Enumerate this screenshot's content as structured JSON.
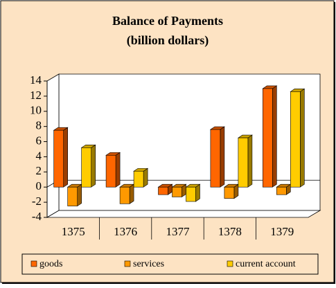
{
  "chart_data": {
    "type": "bar",
    "title": "Balance of Payments",
    "subtitle": "(billion dollars)",
    "categories": [
      "1375",
      "1376",
      "1377",
      "1378",
      "1379"
    ],
    "series": [
      {
        "name": "goods",
        "color": "#ff6600",
        "values": [
          7.5,
          4.2,
          -1.0,
          7.6,
          13.0
        ]
      },
      {
        "name": "services",
        "color": "#ff9900",
        "values": [
          -2.5,
          -2.2,
          -1.3,
          -1.5,
          -1.0
        ]
      },
      {
        "name": "current account",
        "color": "#ffcc00",
        "values": [
          5.2,
          2.1,
          -1.9,
          6.5,
          12.6
        ]
      }
    ],
    "ylim": [
      -4,
      14
    ],
    "yticks": [
      -4,
      -2,
      0,
      2,
      4,
      6,
      8,
      10,
      12,
      14
    ],
    "grid": false,
    "legend": "bottom"
  }
}
